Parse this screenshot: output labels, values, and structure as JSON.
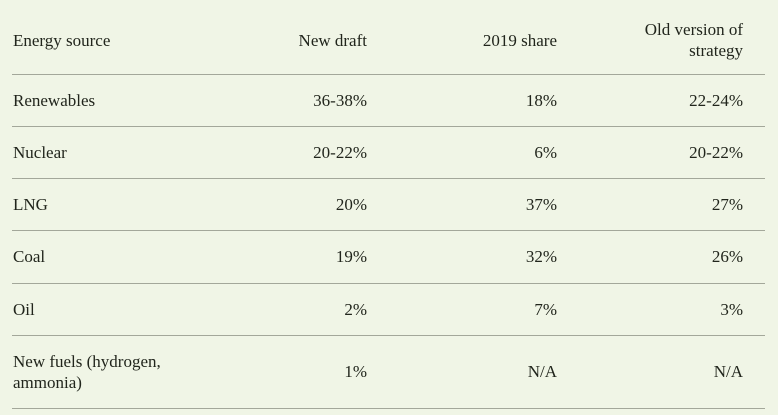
{
  "colors": {
    "background": "#f0f5e6",
    "text": "#21251c",
    "divider": "#a3a79a"
  },
  "table": {
    "columns": [
      {
        "label": "Energy source"
      },
      {
        "label": "New draft"
      },
      {
        "label": "2019 share"
      },
      {
        "label": "Old version of strategy"
      }
    ],
    "rows": [
      [
        "Renewables",
        "36-38%",
        "18%",
        "22-24%"
      ],
      [
        "Nuclear",
        "20-22%",
        "6%",
        "20-22%"
      ],
      [
        "LNG",
        "20%",
        "37%",
        "27%"
      ],
      [
        "Coal",
        "19%",
        "32%",
        "26%"
      ],
      [
        "Oil",
        "2%",
        "7%",
        "3%"
      ],
      [
        "New fuels (hydrogen, ammonia)",
        "1%",
        "N/A",
        "N/A"
      ]
    ]
  },
  "chart_data": {
    "type": "table",
    "title": "",
    "columns": [
      "Energy source",
      "New draft",
      "2019 share",
      "Old version of strategy"
    ],
    "rows": [
      {
        "energy_source": "Renewables",
        "new_draft": "36-38%",
        "share_2019": "18%",
        "old_version": "22-24%"
      },
      {
        "energy_source": "Nuclear",
        "new_draft": "20-22%",
        "share_2019": "6%",
        "old_version": "20-22%"
      },
      {
        "energy_source": "LNG",
        "new_draft": "20%",
        "share_2019": "37%",
        "old_version": "27%"
      },
      {
        "energy_source": "Coal",
        "new_draft": "19%",
        "share_2019": "32%",
        "old_version": "26%"
      },
      {
        "energy_source": "Oil",
        "new_draft": "2%",
        "share_2019": "7%",
        "old_version": "3%"
      },
      {
        "energy_source": "New fuels (hydrogen, ammonia)",
        "new_draft": "1%",
        "share_2019": "N/A",
        "old_version": "N/A"
      }
    ]
  }
}
